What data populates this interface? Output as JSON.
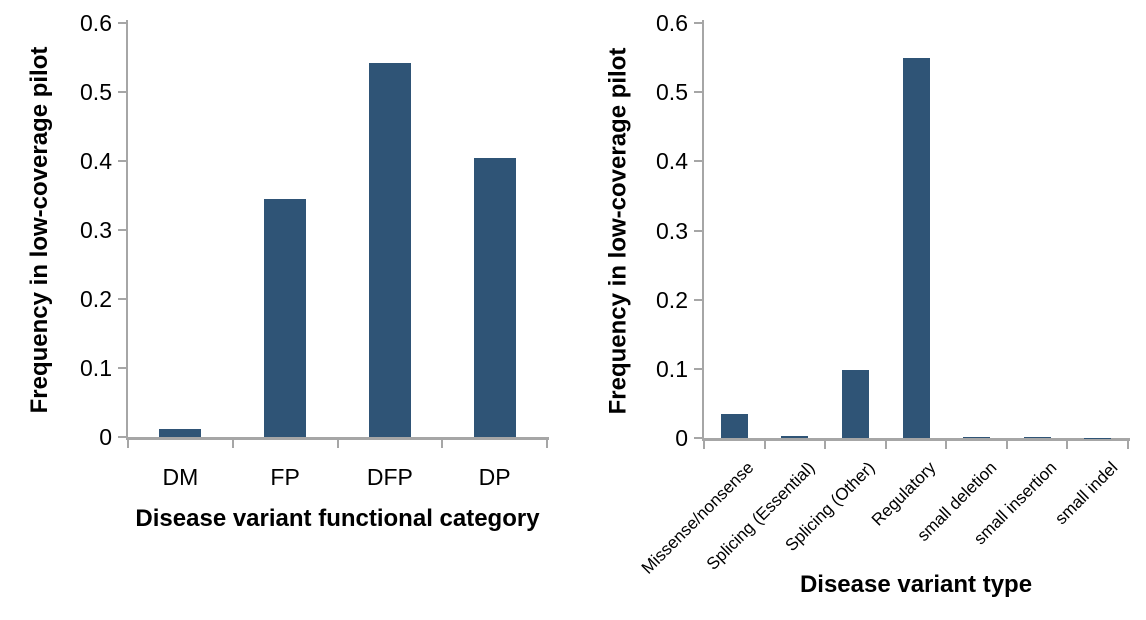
{
  "figure": {
    "background": "#FFFFFF",
    "bar_color": "#2F5476",
    "axis_color": "#A6A6A6",
    "text_color": "#000000"
  },
  "chart_data": [
    {
      "type": "bar",
      "title": "",
      "categories": [
        "DM",
        "FP",
        "DFP",
        "DP"
      ],
      "values": [
        0.011,
        0.345,
        0.542,
        0.405
      ],
      "xlabel": "Disease variant functional category",
      "ylabel": "Frequency in low-coverage pilot",
      "ylim": [
        0,
        0.6
      ],
      "yticks": [
        0,
        0.1,
        0.2,
        0.3,
        0.4,
        0.5,
        0.6
      ],
      "ytick_labels": [
        "0",
        "0.1",
        "0.2",
        "0.3",
        "0.4",
        "0.5",
        "0.6"
      ],
      "grid": false,
      "legend": null,
      "xtick_rotation": 0,
      "bar_color": "#2F5476"
    },
    {
      "type": "bar",
      "title": "",
      "categories": [
        "Missense/nonsense",
        "Splicing (Essential)",
        "Splicing (Other)",
        "Regulatory",
        "small deletion",
        "small insertion",
        "small indel"
      ],
      "values": [
        0.034,
        0.003,
        0.099,
        0.55,
        0.002,
        0.002,
        0.0005
      ],
      "xlabel": "Disease variant type",
      "ylabel": "Frequency in low-coverage pilot",
      "ylim": [
        0,
        0.6
      ],
      "yticks": [
        0,
        0.1,
        0.2,
        0.3,
        0.4,
        0.5,
        0.6
      ],
      "ytick_labels": [
        "0",
        "0.1",
        "0.2",
        "0.3",
        "0.4",
        "0.5",
        "0.6"
      ],
      "grid": false,
      "legend": null,
      "xtick_rotation": -45,
      "bar_color": "#2F5476"
    }
  ]
}
